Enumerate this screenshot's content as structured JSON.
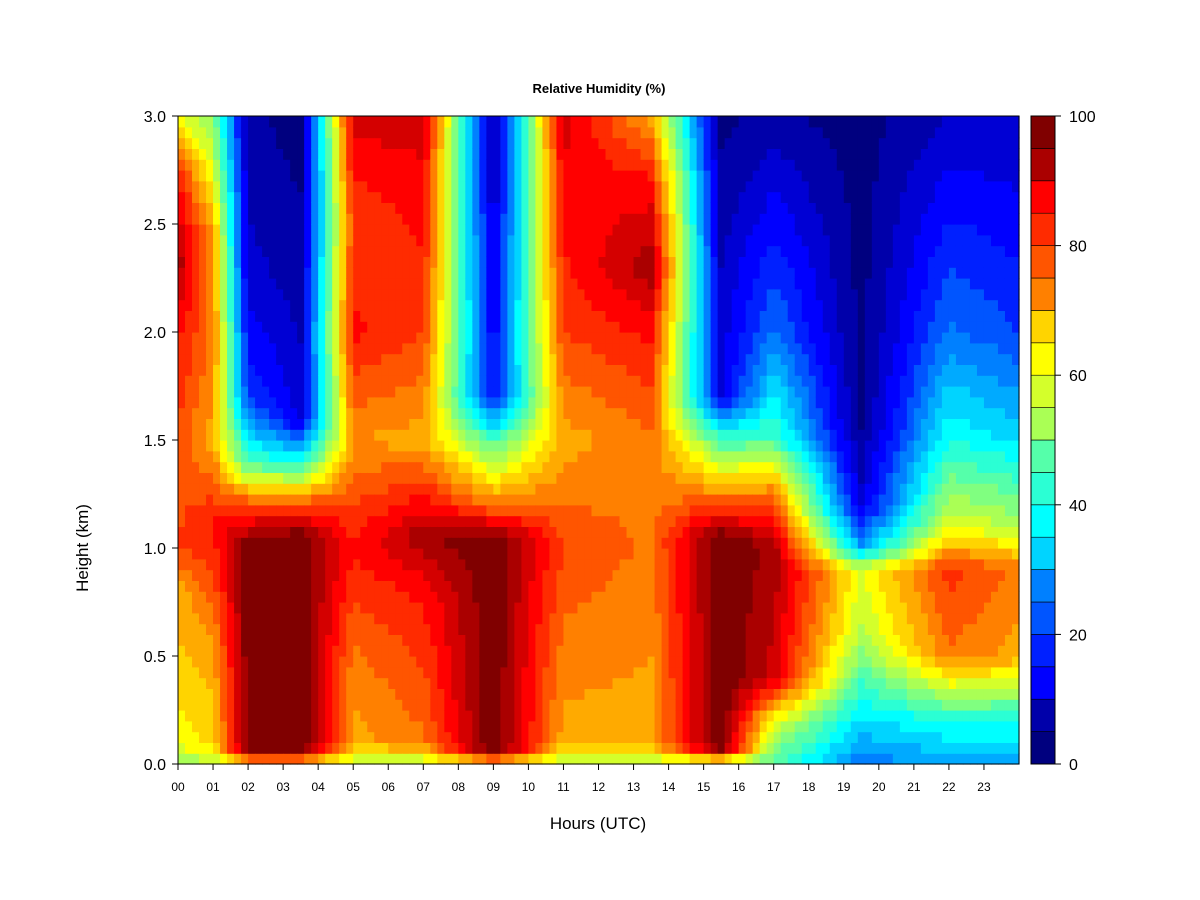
{
  "chart_data": {
    "type": "heatmap",
    "title": "Relative Humidity (%)",
    "xlabel": "Hours (UTC)",
    "ylabel": "Height (km)",
    "xlim": [
      0,
      24
    ],
    "ylim": [
      0,
      3.0
    ],
    "x_ticks": [
      "00",
      "01",
      "02",
      "03",
      "04",
      "05",
      "06",
      "07",
      "08",
      "09",
      "10",
      "11",
      "12",
      "13",
      "14",
      "15",
      "16",
      "17",
      "18",
      "19",
      "20",
      "21",
      "22",
      "23"
    ],
    "y_ticks": [
      "0.0",
      "0.5",
      "1.0",
      "1.5",
      "2.0",
      "2.5",
      "3.0"
    ],
    "y_tick_values": [
      0,
      0.5,
      1.0,
      1.5,
      2.0,
      2.5,
      3.0
    ],
    "colorbar": {
      "range": [
        0,
        100
      ],
      "levels": [
        0,
        5,
        10,
        15,
        20,
        25,
        30,
        35,
        40,
        45,
        50,
        55,
        60,
        65,
        70,
        75,
        80,
        85,
        90,
        95,
        100
      ],
      "tick_labels": [
        "0",
        "20",
        "40",
        "60",
        "80",
        "100"
      ],
      "tick_values": [
        0,
        20,
        40,
        60,
        80,
        100
      ],
      "colors": [
        "#00007F",
        "#0000AA",
        "#0000D4",
        "#0000FF",
        "#0020FF",
        "#0055FF",
        "#0080FF",
        "#00AAFF",
        "#00D4FF",
        "#00FFFF",
        "#2BFFD4",
        "#55FFAA",
        "#80FF80",
        "#AAFF55",
        "#D4FF2B",
        "#FFFF00",
        "#FFD400",
        "#FFAA00",
        "#FF8000",
        "#FF5500",
        "#FF2B00",
        "#FF0000",
        "#D40000",
        "#AA0000",
        "#800000"
      ],
      "legend_placement": "right"
    },
    "time_hours": [
      0,
      0.5,
      1.0,
      1.5,
      2.0,
      2.5,
      3.0,
      3.5,
      4.0,
      4.5,
      5.0,
      5.5,
      6.0,
      6.5,
      7.0,
      7.5,
      8.0,
      8.5,
      9.0,
      9.5,
      10.0,
      10.5,
      11.0,
      11.5,
      12.0,
      12.5,
      13.0,
      13.5,
      14.0,
      14.5,
      15.0,
      15.5,
      16.0,
      16.5,
      17.0,
      17.5,
      18.0,
      18.5,
      19.0,
      19.5,
      20.0,
      20.5,
      21.0,
      21.5,
      22.0,
      22.5,
      23.0,
      23.5
    ],
    "profiles": [
      {
        "t": 0.0,
        "rh": [
          [
            0.0,
            50
          ],
          [
            0.1,
            62
          ],
          [
            0.4,
            66
          ],
          [
            0.8,
            70
          ],
          [
            1.0,
            80
          ],
          [
            1.4,
            78
          ],
          [
            2.0,
            85
          ],
          [
            2.3,
            95
          ],
          [
            2.7,
            85
          ],
          [
            3.0,
            60
          ]
        ]
      },
      {
        "t": 1.0,
        "rh": [
          [
            0.0,
            55
          ],
          [
            0.1,
            65
          ],
          [
            0.5,
            70
          ],
          [
            0.9,
            80
          ],
          [
            1.1,
            85
          ],
          [
            1.5,
            70
          ],
          [
            2.0,
            75
          ],
          [
            2.5,
            70
          ],
          [
            3.0,
            50
          ]
        ]
      },
      {
        "t": 2.0,
        "rh": [
          [
            0.0,
            55
          ],
          [
            0.05,
            98
          ],
          [
            1.0,
            100
          ],
          [
            1.2,
            80
          ],
          [
            1.4,
            45
          ],
          [
            1.7,
            20
          ],
          [
            2.2,
            10
          ],
          [
            3.0,
            5
          ]
        ]
      },
      {
        "t": 3.5,
        "rh": [
          [
            0.0,
            55
          ],
          [
            0.05,
            100
          ],
          [
            1.05,
            100
          ],
          [
            1.2,
            80
          ],
          [
            1.4,
            40
          ],
          [
            1.6,
            10
          ],
          [
            3.0,
            2
          ]
        ]
      },
      {
        "t": 5.0,
        "rh": [
          [
            0.0,
            55
          ],
          [
            0.1,
            70
          ],
          [
            0.5,
            75
          ],
          [
            1.0,
            85
          ],
          [
            1.5,
            72
          ],
          [
            2.0,
            85
          ],
          [
            2.5,
            80
          ],
          [
            3.0,
            90
          ]
        ]
      },
      {
        "t": 7.0,
        "rh": [
          [
            0.0,
            55
          ],
          [
            0.1,
            75
          ],
          [
            0.8,
            85
          ],
          [
            1.05,
            95
          ],
          [
            1.5,
            70
          ],
          [
            2.0,
            80
          ],
          [
            2.5,
            85
          ],
          [
            3.0,
            90
          ]
        ]
      },
      {
        "t": 9.0,
        "rh": [
          [
            0.0,
            55
          ],
          [
            0.05,
            100
          ],
          [
            1.05,
            100
          ],
          [
            1.2,
            75
          ],
          [
            1.5,
            45
          ],
          [
            1.7,
            15
          ],
          [
            3.0,
            5
          ]
        ]
      },
      {
        "t": 11.0,
        "rh": [
          [
            0.0,
            55
          ],
          [
            0.1,
            70
          ],
          [
            0.6,
            75
          ],
          [
            1.0,
            80
          ],
          [
            1.5,
            70
          ],
          [
            2.0,
            80
          ],
          [
            2.5,
            85
          ],
          [
            3.0,
            90
          ]
        ]
      },
      {
        "t": 13.5,
        "rh": [
          [
            0.0,
            55
          ],
          [
            0.1,
            70
          ],
          [
            0.5,
            72
          ],
          [
            1.0,
            75
          ],
          [
            1.5,
            75
          ],
          [
            2.0,
            85
          ],
          [
            2.3,
            95
          ],
          [
            2.7,
            85
          ],
          [
            3.0,
            70
          ]
        ]
      },
      {
        "t": 15.5,
        "rh": [
          [
            0.0,
            55
          ],
          [
            0.08,
            100
          ],
          [
            1.05,
            100
          ],
          [
            1.2,
            80
          ],
          [
            1.5,
            45
          ],
          [
            1.7,
            12
          ],
          [
            3.0,
            3
          ]
        ]
      },
      {
        "t": 17.0,
        "rh": [
          [
            0.0,
            45
          ],
          [
            0.2,
            60
          ],
          [
            0.4,
            90
          ],
          [
            1.0,
            95
          ],
          [
            1.3,
            70
          ],
          [
            1.5,
            45
          ],
          [
            2.0,
            25
          ],
          [
            3.0,
            5
          ]
        ]
      },
      {
        "t": 19.5,
        "rh": [
          [
            0.0,
            25
          ],
          [
            0.2,
            35
          ],
          [
            0.6,
            55
          ],
          [
            0.9,
            60
          ],
          [
            1.0,
            30
          ],
          [
            1.2,
            10
          ],
          [
            1.6,
            3
          ],
          [
            3.0,
            2
          ]
        ]
      },
      {
        "t": 22.0,
        "rh": [
          [
            0.0,
            30
          ],
          [
            0.2,
            40
          ],
          [
            0.5,
            75
          ],
          [
            0.9,
            82
          ],
          [
            1.1,
            60
          ],
          [
            1.5,
            40
          ],
          [
            2.0,
            25
          ],
          [
            3.0,
            8
          ]
        ]
      },
      {
        "t": 24.0,
        "rh": [
          [
            0.0,
            30
          ],
          [
            0.2,
            40
          ],
          [
            0.5,
            70
          ],
          [
            0.9,
            75
          ],
          [
            1.1,
            55
          ],
          [
            1.5,
            35
          ],
          [
            2.0,
            20
          ],
          [
            3.0,
            8
          ]
        ]
      }
    ]
  }
}
